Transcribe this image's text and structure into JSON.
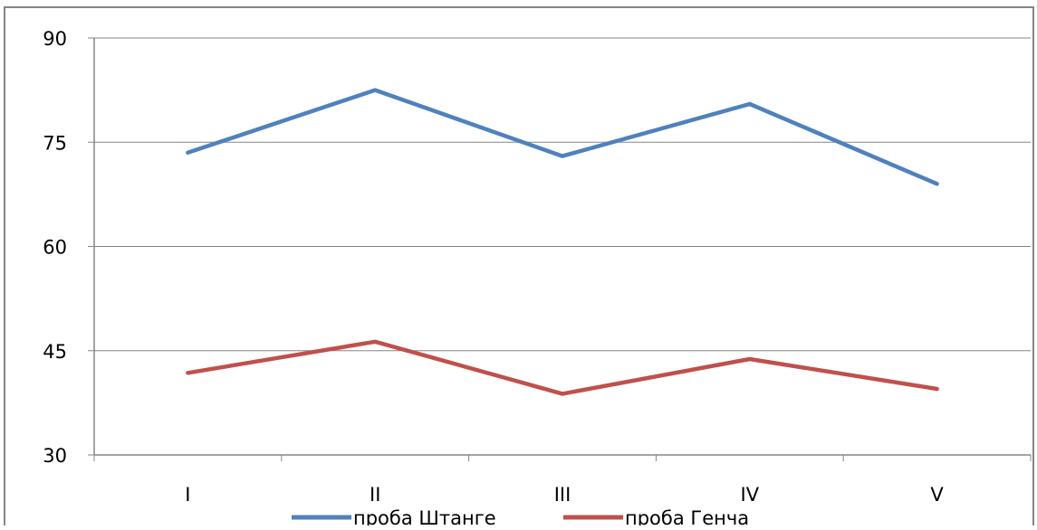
{
  "chart_data": {
    "type": "line",
    "categories": [
      "I",
      "II",
      "III",
      "IV",
      "V"
    ],
    "y_ticks": [
      "30",
      "45",
      "60",
      "75",
      "90"
    ],
    "ylim": [
      30,
      90
    ],
    "grid": true,
    "legend_position": "bottom",
    "series": [
      {
        "name": "проба Штанге",
        "color": "#4f81bd",
        "values": [
          73.5,
          82.5,
          73.0,
          80.5,
          69.0
        ]
      },
      {
        "name": "проба Генча",
        "color": "#c0504d",
        "values": [
          41.8,
          46.3,
          38.8,
          43.8,
          39.5
        ]
      }
    ]
  }
}
